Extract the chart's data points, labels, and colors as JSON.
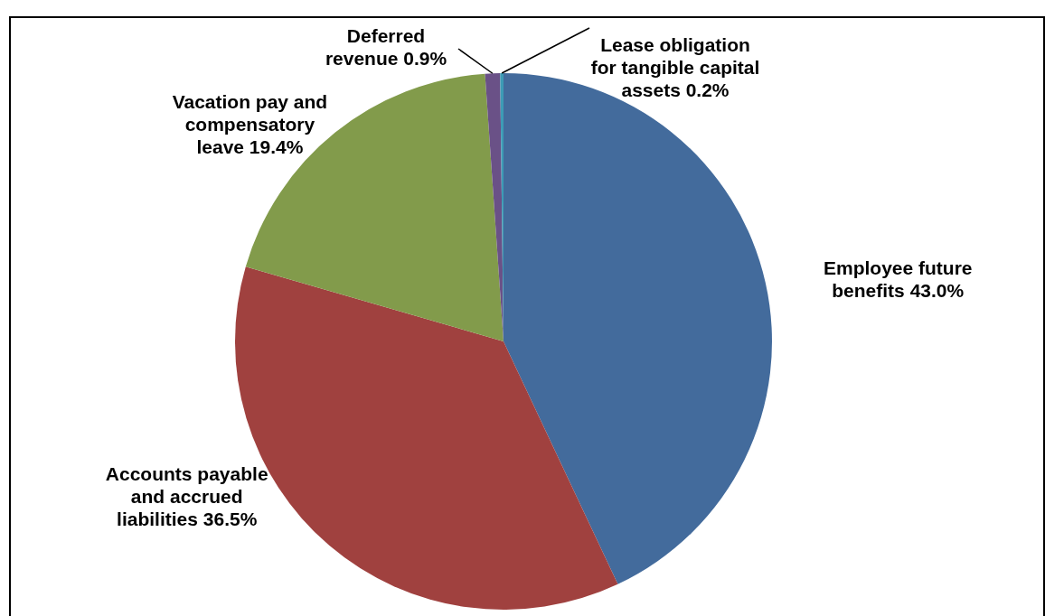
{
  "chart_data": {
    "type": "pie",
    "categories": [
      "Employee future benefits",
      "Accounts payable and accrued liabilities",
      "Vacation pay and compensatory leave",
      "Deferred revenue",
      "Lease obligation for tangible capital assets"
    ],
    "values": [
      43.0,
      36.5,
      19.4,
      0.9,
      0.2
    ],
    "colors": [
      "#436b9c",
      "#a0413f",
      "#829b4b",
      "#6a5187",
      "#3d9bb5"
    ],
    "value_labels": [
      "43.0%",
      "36.5%",
      "19.4%",
      "0.9%",
      "0.2%"
    ],
    "legend": false
  }
}
